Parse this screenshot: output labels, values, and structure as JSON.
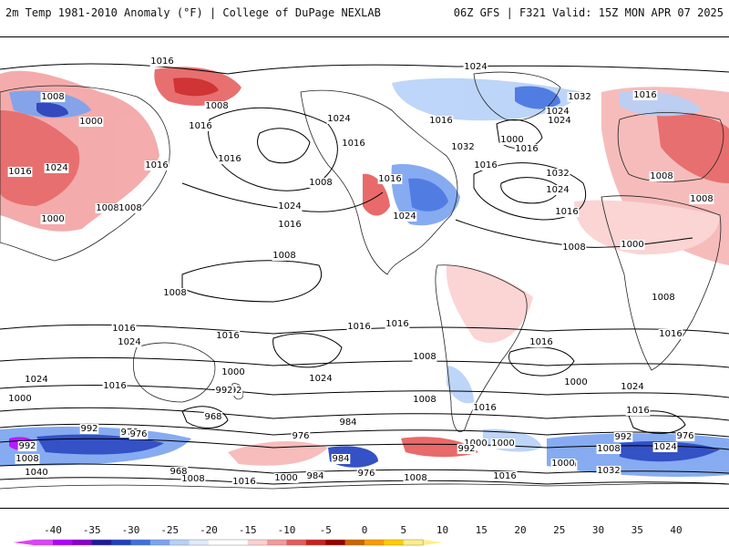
{
  "header": {
    "title": "2m Temp 1981-2010 Anomaly (°F) | College of DuPage NEXLAB",
    "run_info": "06Z GFS | F321 Valid: 15Z MON APR 07 2025"
  },
  "colors": {
    "background": "#ffffff",
    "contour": "#000000",
    "coast": "#222222"
  },
  "legend": {
    "ticks": [
      "-40",
      "-35",
      "-30",
      "-25",
      "-20",
      "-15",
      "-10",
      "-5",
      "0",
      "5",
      "10",
      "15",
      "20",
      "25",
      "30",
      "35",
      "40"
    ],
    "bins": [
      "#e040fb",
      "#b400ff",
      "#8800cc",
      "#1a1a99",
      "#1f3fbf",
      "#3f6fe0",
      "#7aa3f0",
      "#b6d1f8",
      "#dfeafd",
      "#ffffff",
      "#ffffff",
      "#fbd0d0",
      "#f39999",
      "#e65a5a",
      "#cc1f1f",
      "#990000",
      "#cc6600",
      "#ff9900",
      "#ffcc00",
      "#ffee88"
    ]
  },
  "isobar_labels": [
    {
      "text": "1016",
      "name": "pacific-north"
    },
    {
      "text": "1024",
      "name": "north-atlantic-top"
    },
    {
      "text": "1008",
      "name": "alaska"
    },
    {
      "text": "1000",
      "name": "bering"
    },
    {
      "text": "1008",
      "name": "siberia-east"
    },
    {
      "text": "1016",
      "name": "japan-north"
    },
    {
      "text": "1016",
      "name": "east-asia-a"
    },
    {
      "text": "1024",
      "name": "east-asia-b"
    },
    {
      "text": "1008",
      "name": "china"
    },
    {
      "text": "1016",
      "name": "west-pacific"
    },
    {
      "text": "1000",
      "name": "south-china"
    },
    {
      "text": "1008",
      "name": "philippines"
    },
    {
      "text": "1016",
      "name": "north-pacific-a"
    },
    {
      "text": "1008",
      "name": "north-pacific-high"
    },
    {
      "text": "1024",
      "name": "north-pacific-b"
    },
    {
      "text": "1016",
      "name": "north-pacific-c"
    },
    {
      "text": "1024",
      "name": "canada-west"
    },
    {
      "text": "1016",
      "name": "canada-mid"
    },
    {
      "text": "1016",
      "name": "rockies"
    },
    {
      "text": "1024",
      "name": "gulf"
    },
    {
      "text": "1016",
      "name": "hudson"
    },
    {
      "text": "1032",
      "name": "great-lakes"
    },
    {
      "text": "1024",
      "name": "labrador"
    },
    {
      "text": "1016",
      "name": "atlantic-a"
    },
    {
      "text": "1032",
      "name": "atlantic-high"
    },
    {
      "text": "1024",
      "name": "atlantic-b"
    },
    {
      "text": "1000",
      "name": "greenland"
    },
    {
      "text": "1016",
      "name": "greenland-b"
    },
    {
      "text": "1032",
      "name": "scandinavia"
    },
    {
      "text": "1024",
      "name": "north-sea"
    },
    {
      "text": "1016",
      "name": "europe-east"
    },
    {
      "text": "1008",
      "name": "asia-central"
    },
    {
      "text": "1008",
      "name": "india"
    },
    {
      "text": "1016",
      "name": "canaries"
    },
    {
      "text": "1008",
      "name": "sahara"
    },
    {
      "text": "1000",
      "name": "africa-central"
    },
    {
      "text": "1008",
      "name": "central-pacific"
    },
    {
      "text": "1008",
      "name": "new-guinea"
    },
    {
      "text": "1008",
      "name": "east-africa"
    },
    {
      "text": "1016",
      "name": "south-africa"
    },
    {
      "text": "1016",
      "name": "australia-west"
    },
    {
      "text": "1024",
      "name": "australia-south"
    },
    {
      "text": "1016",
      "name": "tasman"
    },
    {
      "text": "1016",
      "name": "south-pacific-a"
    },
    {
      "text": "1016",
      "name": "south-pacific-b"
    },
    {
      "text": "1024",
      "name": "south-pacific-high"
    },
    {
      "text": "1008",
      "name": "south-pacific-c"
    },
    {
      "text": "1016",
      "name": "chile"
    },
    {
      "text": "1000",
      "name": "south-pacific-d"
    },
    {
      "text": "1008",
      "name": "argentina"
    },
    {
      "text": "1016",
      "name": "south-atlantic-a"
    },
    {
      "text": "1000",
      "name": "south-atlantic-b"
    },
    {
      "text": "1024",
      "name": "south-africa-high"
    },
    {
      "text": "1024",
      "name": "indian-ocean-a"
    },
    {
      "text": "1000",
      "name": "indian-ocean-b"
    },
    {
      "text": "1016",
      "name": "indian-ocean-c"
    },
    {
      "text": "992",
      "name": "southern-ocean-a"
    },
    {
      "text": "984",
      "name": "southern-ocean-b"
    },
    {
      "text": "992",
      "name": "southern-ocean-c"
    },
    {
      "text": "968",
      "name": "southern-ocean-d"
    },
    {
      "text": "976",
      "name": "southern-ocean-e"
    },
    {
      "text": "984",
      "name": "southern-ocean-f"
    },
    {
      "text": "1000",
      "name": "southern-ocean-g"
    },
    {
      "text": "1000",
      "name": "drake-a"
    },
    {
      "text": "1016",
      "name": "drake-b"
    },
    {
      "text": "992",
      "name": "weddell"
    },
    {
      "text": "1000",
      "name": "southern-ocean-h"
    },
    {
      "text": "976",
      "name": "antarctic-a"
    },
    {
      "text": "968",
      "name": "antarctic-b"
    },
    {
      "text": "976",
      "name": "antarctic-c"
    },
    {
      "text": "984",
      "name": "antarctic-d"
    },
    {
      "text": "1000",
      "name": "antarctic-e"
    },
    {
      "text": "1008",
      "name": "antarctic-f"
    },
    {
      "text": "1016",
      "name": "antarctic-g"
    },
    {
      "text": "1008",
      "name": "antarctic-h"
    },
    {
      "text": "1016",
      "name": "antarctic-i"
    },
    {
      "text": "992",
      "name": "antarctic-j"
    },
    {
      "text": "1008",
      "name": "antarctic-k"
    },
    {
      "text": "1024",
      "name": "antarctic-l"
    },
    {
      "text": "976",
      "name": "antarctic-m"
    },
    {
      "text": "1032",
      "name": "antarctic-n"
    },
    {
      "text": "1000",
      "name": "antarctic-o"
    },
    {
      "text": "992",
      "name": "west-antarctic-a"
    },
    {
      "text": "1008",
      "name": "west-antarctic-b"
    },
    {
      "text": "1040",
      "name": "west-antarctic-c"
    },
    {
      "text": "976",
      "name": "west-antarctic-d"
    },
    {
      "text": "992",
      "name": "west-antarctic-e"
    }
  ]
}
